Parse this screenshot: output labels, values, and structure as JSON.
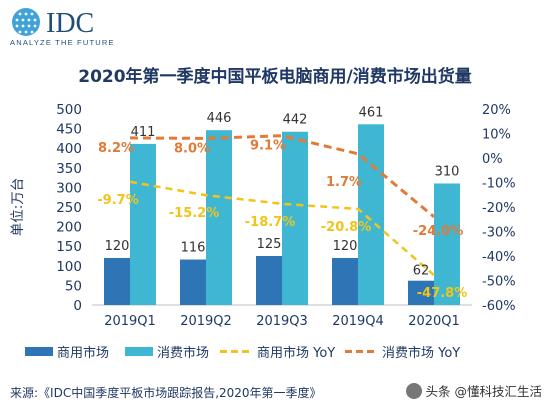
{
  "logo": {
    "name": "IDC",
    "tagline": "ANALYZE THE FUTURE"
  },
  "source": "来源:《IDC中国季度平板市场跟踪报告,2020年第一季度》",
  "watermark": "头条 @懂科技汇生活",
  "colors": {
    "commercial": "#2e75b6",
    "consumer": "#3fb7d3",
    "commercial_yoy": "#f2c41b",
    "consumer_yoy": "#e07b39",
    "axis_text": "#1f3864"
  },
  "chart_data": {
    "type": "bar",
    "title": "2020年第一季度中国平板电脑商用/消费市场出货量",
    "ylabel": "单位:万台",
    "categories": [
      "2019Q1",
      "2019Q2",
      "2019Q3",
      "2019Q4",
      "2020Q1"
    ],
    "ylim": [
      0,
      500
    ],
    "yticks": [
      0,
      50,
      100,
      150,
      200,
      250,
      300,
      350,
      400,
      450,
      500
    ],
    "y2lim": [
      -60,
      20
    ],
    "y2ticks": [
      "20%",
      "10%",
      "0%",
      "-10%",
      "-20%",
      "-30%",
      "-40%",
      "-50%",
      "-60%"
    ],
    "series": [
      {
        "name": "商用市场",
        "kind": "bar",
        "values": [
          120,
          116,
          125,
          120,
          62
        ],
        "labels": [
          "120",
          "116",
          "125",
          "120",
          "62"
        ]
      },
      {
        "name": "消费市场",
        "kind": "bar",
        "values": [
          411,
          446,
          442,
          461,
          310
        ],
        "labels": [
          "411",
          "446",
          "442",
          "461",
          "310"
        ]
      },
      {
        "name": "商用市场 YoY",
        "kind": "line-dashed",
        "axis": "right",
        "values": [
          -9.7,
          -15.2,
          -18.7,
          -20.8,
          -47.8
        ],
        "labels": [
          "-9.7%",
          "-15.2%",
          "-18.7%",
          "-20.8%",
          "-47.8%"
        ]
      },
      {
        "name": "消费市场 YoY",
        "kind": "line-dashed",
        "axis": "right",
        "values": [
          8.2,
          8.0,
          9.1,
          1.7,
          -24.0
        ],
        "labels": [
          "8.2%",
          "8.0%",
          "9.1%",
          "1.7%",
          "-24.0%"
        ]
      }
    ],
    "legend": "bottom",
    "grid": false
  }
}
